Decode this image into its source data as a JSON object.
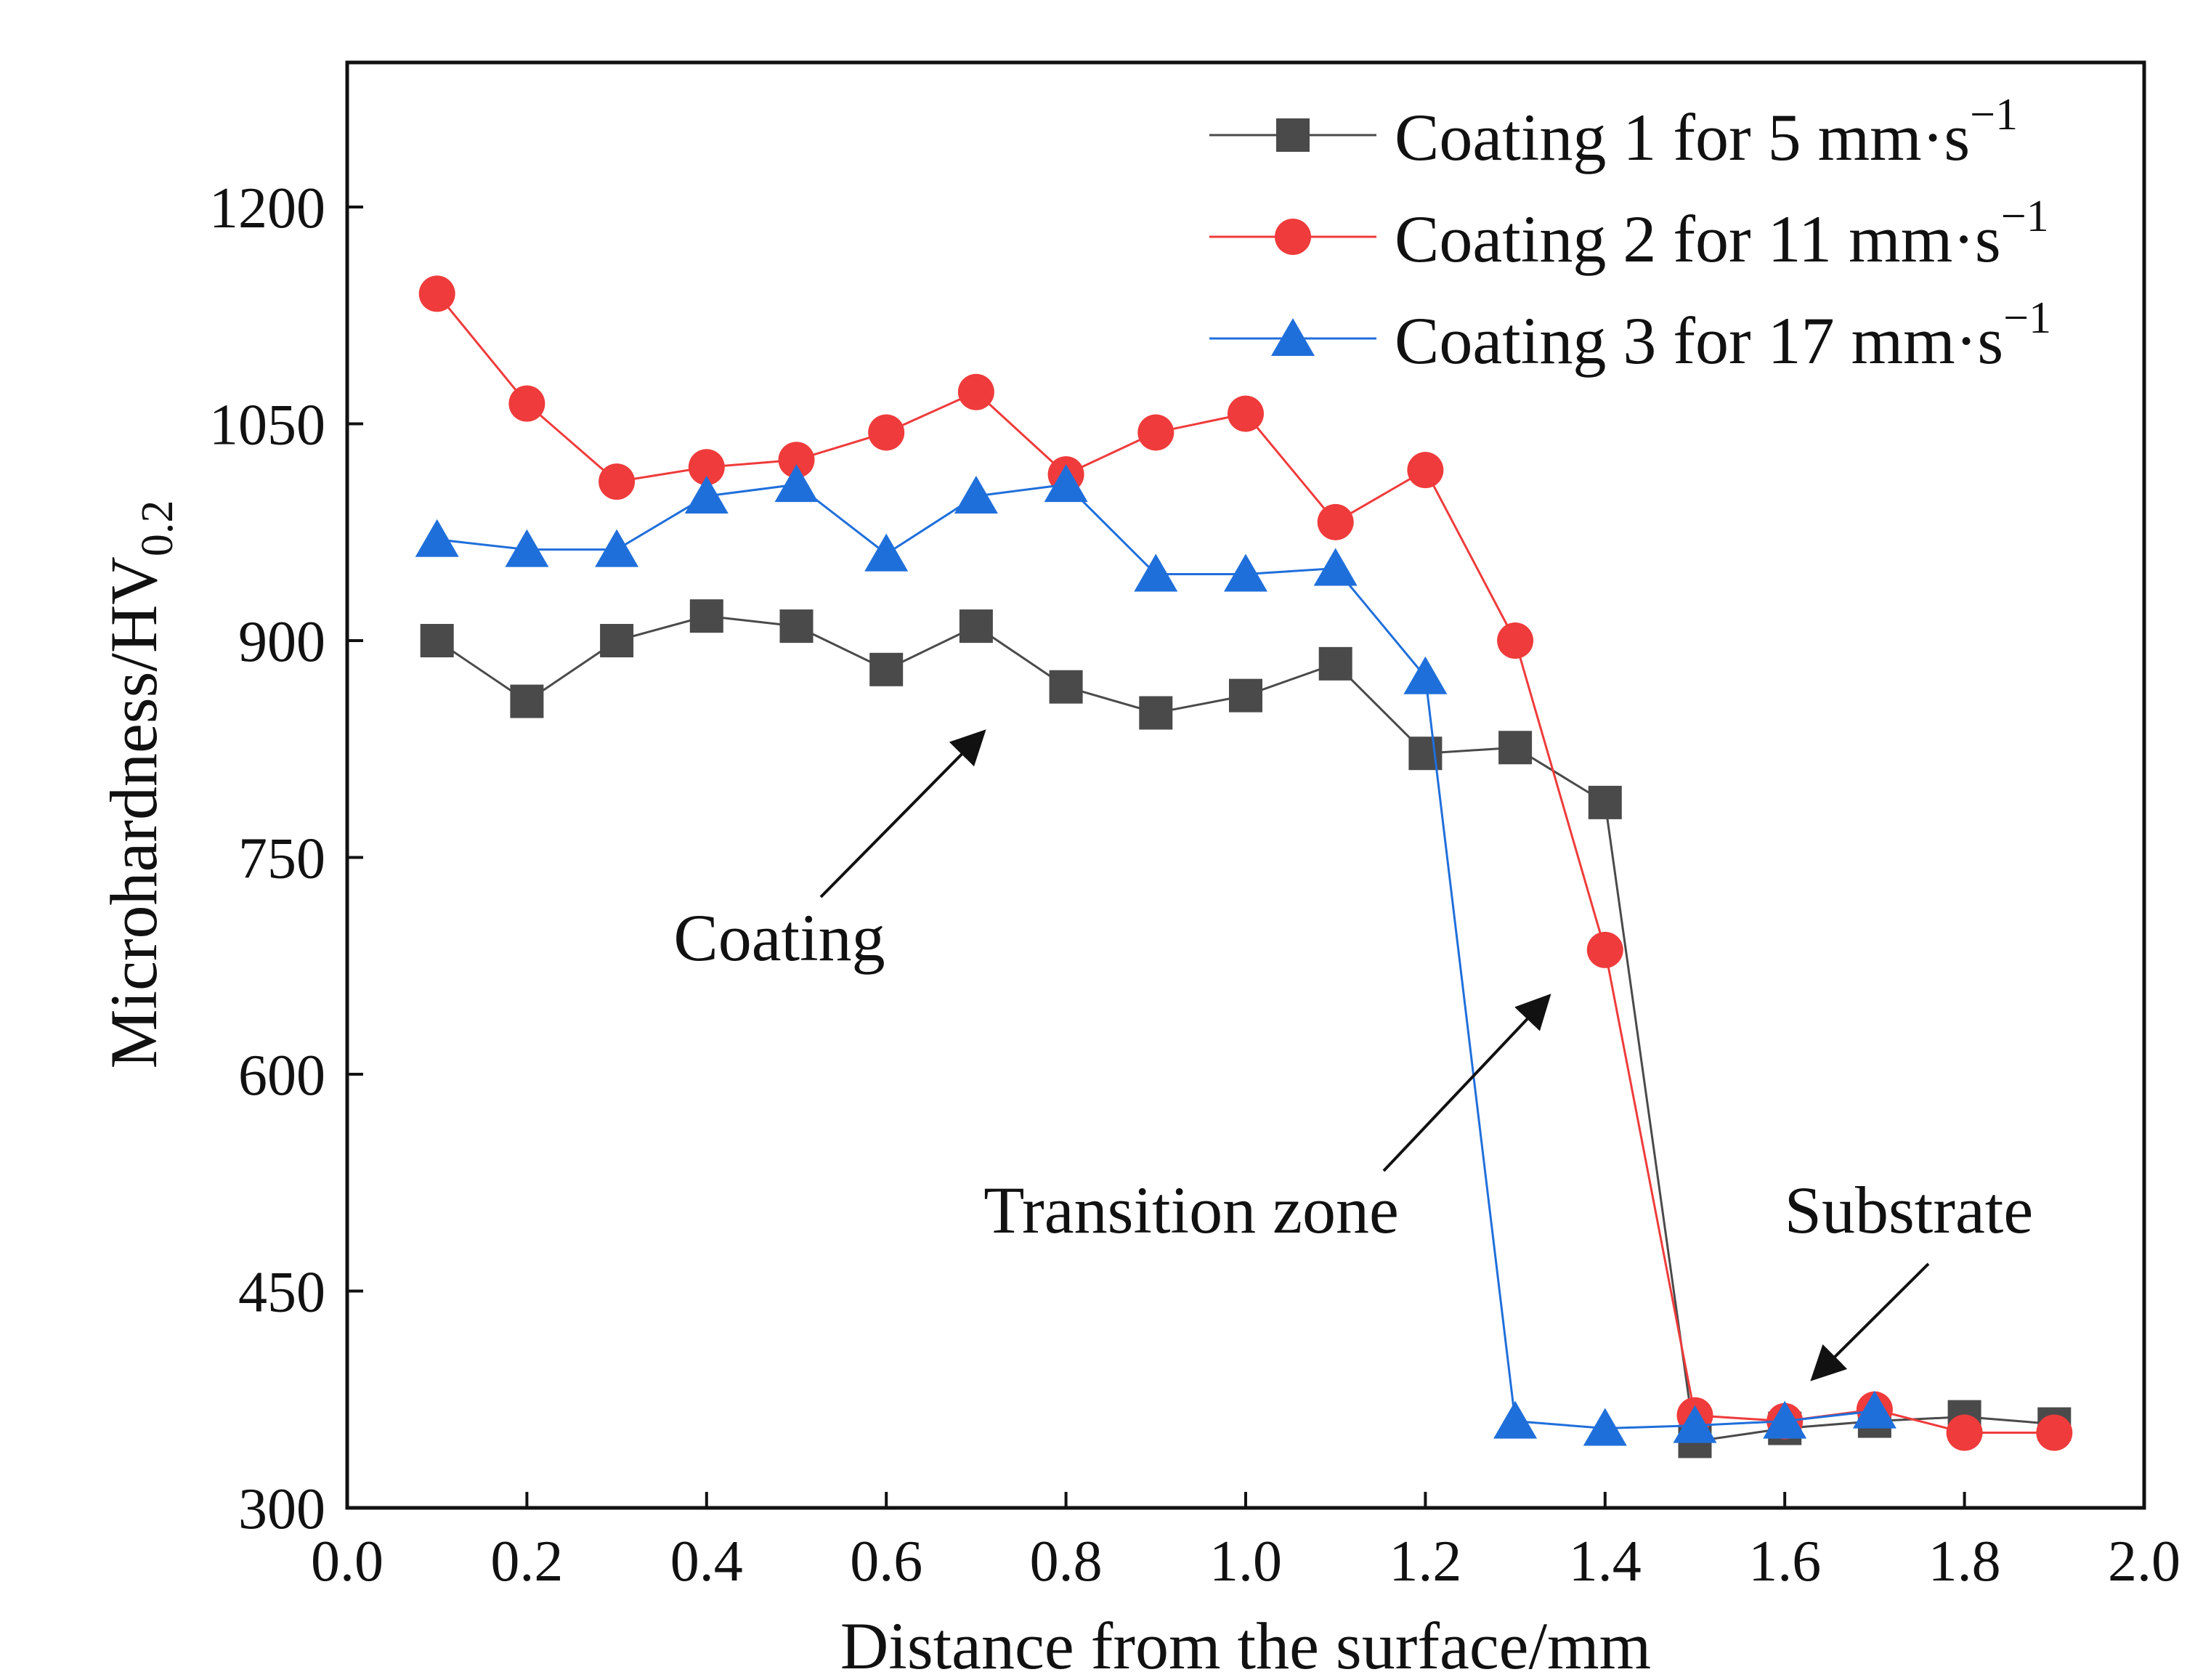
{
  "chart_data": {
    "type": "line",
    "xlabel": "Distance from the surface/mm",
    "ylabel_main": "Microhardness/HV",
    "ylabel_sub": "0.2",
    "xlim": [
      0.0,
      2.0
    ],
    "ylim": [
      300,
      1300
    ],
    "x_ticks": [
      0.0,
      0.2,
      0.4,
      0.6,
      0.8,
      1.0,
      1.2,
      1.4,
      1.6,
      1.8,
      2.0
    ],
    "x_tick_labels": [
      "0.0",
      "0.2",
      "0.4",
      "0.6",
      "0.8",
      "1.0",
      "1.2",
      "1.4",
      "1.6",
      "1.8",
      "2.0"
    ],
    "y_ticks": [
      300,
      450,
      600,
      750,
      900,
      1050,
      1200
    ],
    "y_tick_labels": [
      "300",
      "450",
      "600",
      "750",
      "900",
      "1050",
      "1200"
    ],
    "grid": false,
    "legend_position": "top-right",
    "series": [
      {
        "name": "Coating 1 for 5 mm·s",
        "superscript": "−1",
        "color": "#4a4a4a",
        "marker": "square",
        "x": [
          0.1,
          0.2,
          0.3,
          0.4,
          0.5,
          0.6,
          0.7,
          0.8,
          0.9,
          1.0,
          1.1,
          1.2,
          1.3,
          1.4,
          1.5,
          1.6,
          1.7,
          1.8,
          1.9
        ],
        "values": [
          900,
          858,
          900,
          917,
          910,
          880,
          910,
          868,
          850,
          862,
          884,
          822,
          826,
          788,
          346,
          355,
          360,
          363,
          358
        ]
      },
      {
        "name": "Coating 2 for 11 mm·s",
        "superscript": "−1",
        "color": "#ef3b3b",
        "marker": "circle",
        "x": [
          0.1,
          0.2,
          0.3,
          0.4,
          0.5,
          0.6,
          0.7,
          0.8,
          0.9,
          1.0,
          1.1,
          1.2,
          1.3,
          1.4,
          1.5,
          1.6,
          1.7,
          1.8,
          1.9
        ],
        "values": [
          1140,
          1064,
          1010,
          1020,
          1025,
          1044,
          1072,
          1015,
          1044,
          1057,
          982,
          1018,
          900,
          686,
          364,
          360,
          368,
          352,
          352
        ]
      },
      {
        "name": "Coating 3 for 17 mm·s",
        "superscript": "−1",
        "color": "#1f6fdb",
        "marker": "triangle",
        "x": [
          0.1,
          0.2,
          0.3,
          0.4,
          0.5,
          0.6,
          0.7,
          0.8,
          0.9,
          1.0,
          1.1,
          1.2,
          1.3,
          1.4,
          1.5,
          1.6,
          1.7
        ],
        "values": [
          970,
          963,
          963,
          1000,
          1008,
          960,
          1000,
          1008,
          946,
          946,
          950,
          875,
          360,
          355,
          357,
          360,
          367
        ]
      }
    ],
    "annotations": [
      {
        "text": "Coating",
        "arrow_to": [
          0.7,
          836
        ]
      },
      {
        "text": "Transition zone",
        "arrow_to": [
          1.35,
          660
        ]
      },
      {
        "text": "Substrate",
        "arrow_to": [
          1.6,
          390
        ]
      }
    ]
  }
}
